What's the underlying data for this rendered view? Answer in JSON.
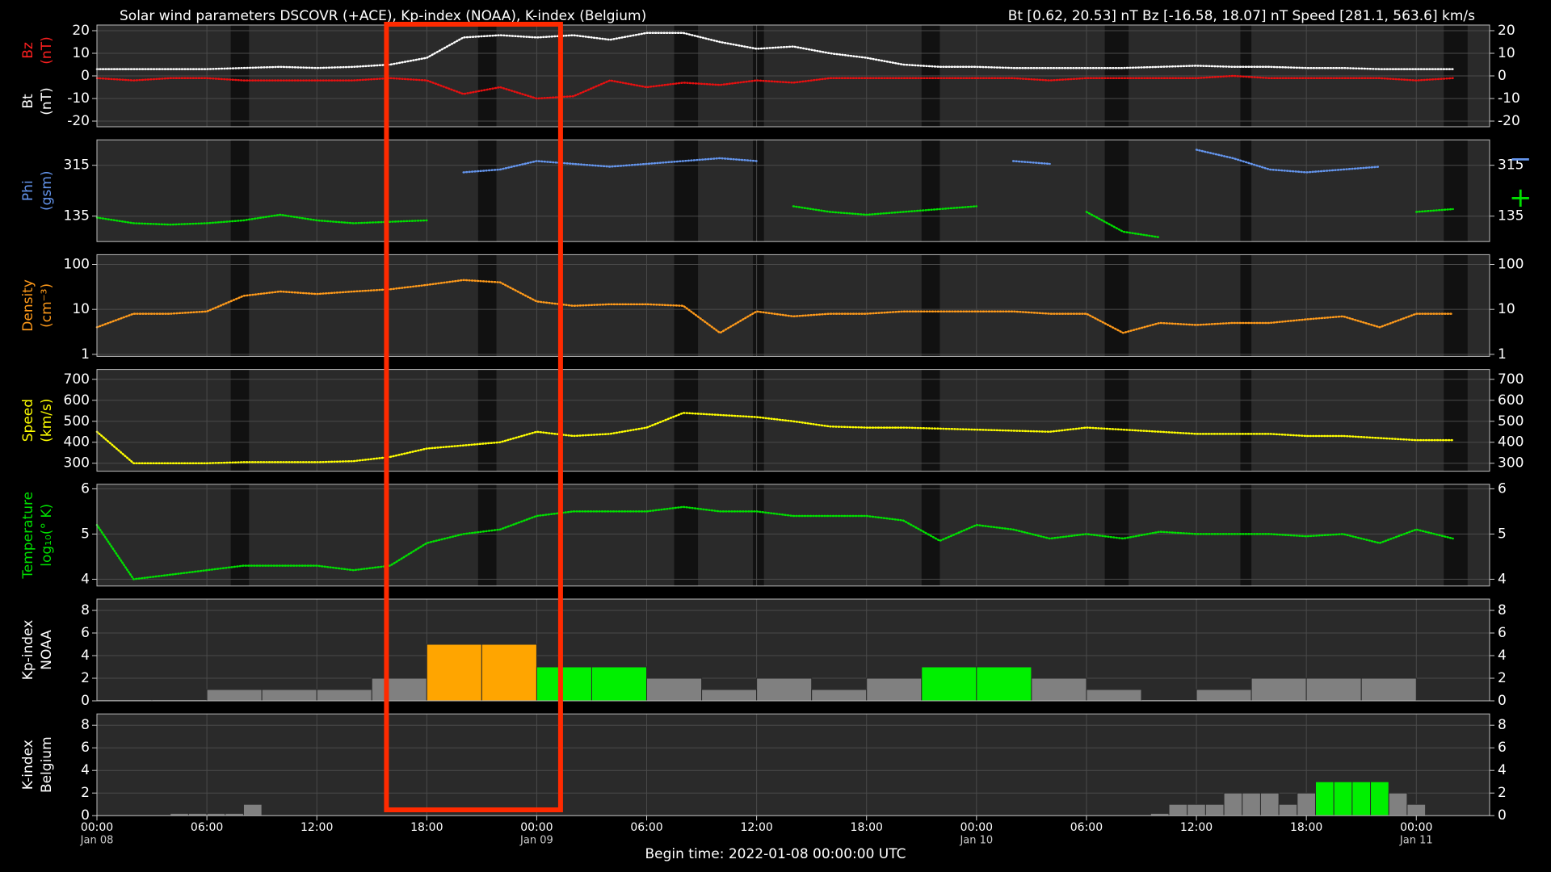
{
  "header": {
    "title": "Solar wind parameters DSCOVR (+ACE), Kp-index (NOAA), K-index (Belgium)",
    "ranges": "Bt [0.62, 20.53] nT   Bz [-16.58, 18.07] nT   Speed [281.1, 563.6] km/s"
  },
  "footer": "Begin time: 2022-01-08 00:00:00 UTC",
  "gaps": [
    [
      7.3,
      8.3
    ],
    [
      20.8,
      21.8
    ],
    [
      31.5,
      32.8
    ],
    [
      35.8,
      36.4
    ],
    [
      45.0,
      46.0
    ],
    [
      55.0,
      56.3
    ],
    [
      62.4,
      63.0
    ],
    [
      73.5,
      74.8
    ]
  ],
  "highlight": [
    15.8,
    25.3
  ],
  "chart_data": [
    {
      "type": "line",
      "ylabels": [
        {
          "lines": [
            "Bz",
            "(nT)"
          ],
          "color": "#ff2020"
        },
        {
          "lines": [
            "Bt",
            "(nT)"
          ],
          "color": "#ffffff"
        }
      ],
      "xlim": [
        0,
        76
      ],
      "ylim": [
        -22.5,
        22.5
      ],
      "yticks": [
        -20,
        -10,
        0,
        10,
        20
      ],
      "x": [
        0,
        2,
        4,
        6,
        8,
        10,
        12,
        14,
        16,
        18,
        20,
        22,
        24,
        26,
        28,
        30,
        32,
        34,
        36,
        38,
        40,
        42,
        44,
        46,
        48,
        50,
        52,
        54,
        56,
        58,
        60,
        62,
        64,
        66,
        68,
        70,
        72,
        74,
        76
      ],
      "series": [
        {
          "color": "#ffffff",
          "values": [
            3,
            3,
            3,
            3,
            3.5,
            4,
            3.5,
            4,
            5,
            8,
            17,
            18,
            17,
            18,
            16,
            19,
            19,
            15,
            12,
            13,
            10,
            8,
            5,
            4,
            4,
            3.5,
            3.5,
            3.5,
            3.5,
            4,
            4.5,
            4,
            4,
            3.5,
            3.5,
            3,
            3,
            3,
            null
          ]
        },
        {
          "color": "#e81010",
          "values": [
            -1,
            -2,
            -1,
            -1,
            -2,
            -2,
            -2,
            -2,
            -1,
            -2,
            -8,
            -5,
            -10,
            -9,
            -2,
            -5,
            -3,
            -4,
            -2,
            -3,
            -1,
            -1,
            -1,
            -1,
            -1,
            -1,
            -2,
            -1,
            -1,
            -1,
            -1,
            0,
            -1,
            -1,
            -1,
            -1,
            -2,
            -1,
            null
          ]
        }
      ]
    },
    {
      "type": "line",
      "ylabels": [
        {
          "lines": [
            "Phi",
            "(gsm)"
          ],
          "color": "#6495ed"
        }
      ],
      "xlim": [
        0,
        76
      ],
      "ylim": [
        45,
        405
      ],
      "yticks": [
        135,
        315
      ],
      "x": [
        0,
        2,
        4,
        6,
        8,
        10,
        12,
        14,
        16,
        18,
        20,
        22,
        24,
        26,
        28,
        30,
        32,
        34,
        36,
        38,
        40,
        42,
        44,
        46,
        48,
        50,
        52,
        54,
        56,
        58,
        60,
        62,
        64,
        66,
        68,
        70,
        72,
        74,
        76
      ],
      "series": [
        {
          "name": "−",
          "color": "#6495ed",
          "values": [
            null,
            null,
            null,
            null,
            null,
            null,
            null,
            null,
            null,
            null,
            290,
            300,
            330,
            320,
            310,
            320,
            330,
            340,
            330,
            null,
            null,
            null,
            null,
            null,
            null,
            330,
            320,
            null,
            null,
            null,
            370,
            340,
            300,
            290,
            300,
            310,
            null,
            null,
            null
          ]
        },
        {
          "name": "+",
          "color": "#00e000",
          "values": [
            130,
            110,
            105,
            110,
            120,
            140,
            120,
            110,
            115,
            120,
            null,
            null,
            null,
            null,
            null,
            null,
            null,
            null,
            null,
            170,
            150,
            140,
            150,
            160,
            170,
            null,
            null,
            150,
            80,
            60,
            null,
            null,
            null,
            null,
            null,
            null,
            150,
            160,
            null
          ]
        }
      ]
    },
    {
      "type": "line",
      "log": true,
      "ylabels": [
        {
          "lines": [
            "Density",
            "(cm⁻³)"
          ],
          "color": "#ff9a1a"
        }
      ],
      "xlim": [
        0,
        76
      ],
      "ylim": [
        0.9,
        165
      ],
      "yticks": [
        1,
        10,
        100
      ],
      "x": [
        0,
        2,
        4,
        6,
        8,
        10,
        12,
        14,
        16,
        18,
        20,
        22,
        24,
        26,
        28,
        30,
        32,
        34,
        36,
        38,
        40,
        42,
        44,
        46,
        48,
        50,
        52,
        54,
        56,
        58,
        60,
        62,
        64,
        66,
        68,
        70,
        72,
        74,
        76
      ],
      "series": [
        {
          "color": "#ff9a1a",
          "values": [
            4,
            8,
            8,
            9,
            20,
            25,
            22,
            25,
            28,
            35,
            45,
            40,
            15,
            12,
            13,
            13,
            12,
            3,
            9,
            7,
            8,
            8,
            9,
            9,
            9,
            9,
            8,
            8,
            3,
            5,
            4.5,
            5,
            5,
            6,
            7,
            4,
            8,
            8,
            null
          ]
        }
      ]
    },
    {
      "type": "line",
      "ylabels": [
        {
          "lines": [
            "Speed",
            "(km/s)"
          ],
          "color": "#ffff00"
        }
      ],
      "xlim": [
        0,
        76
      ],
      "ylim": [
        262,
        747
      ],
      "yticks": [
        300,
        400,
        500,
        600,
        700
      ],
      "x": [
        0,
        2,
        4,
        6,
        8,
        10,
        12,
        14,
        16,
        18,
        20,
        22,
        24,
        26,
        28,
        30,
        32,
        34,
        36,
        38,
        40,
        42,
        44,
        46,
        48,
        50,
        52,
        54,
        56,
        58,
        60,
        62,
        64,
        66,
        68,
        70,
        72,
        74,
        76
      ],
      "series": [
        {
          "color": "#ffff00",
          "values": [
            450,
            300,
            300,
            300,
            305,
            305,
            305,
            310,
            330,
            370,
            385,
            400,
            450,
            430,
            440,
            470,
            540,
            530,
            520,
            500,
            475,
            470,
            470,
            465,
            460,
            455,
            450,
            470,
            460,
            450,
            440,
            440,
            440,
            430,
            430,
            420,
            410,
            410,
            null
          ]
        }
      ]
    },
    {
      "type": "line",
      "ylabels": [
        {
          "lines": [
            "Temperature",
            "log₁₀(° K)"
          ],
          "color": "#00e000"
        }
      ],
      "xlim": [
        0,
        76
      ],
      "ylim": [
        3.85,
        6.1
      ],
      "yticks": [
        4,
        5,
        6
      ],
      "x": [
        0,
        2,
        4,
        6,
        8,
        10,
        12,
        14,
        16,
        18,
        20,
        22,
        24,
        26,
        28,
        30,
        32,
        34,
        36,
        38,
        40,
        42,
        44,
        46,
        48,
        50,
        52,
        54,
        56,
        58,
        60,
        62,
        64,
        66,
        68,
        70,
        72,
        74,
        76
      ],
      "series": [
        {
          "color": "#00e000",
          "values": [
            5.2,
            4.0,
            4.1,
            4.2,
            4.3,
            4.3,
            4.3,
            4.2,
            4.3,
            4.8,
            5.0,
            5.1,
            5.4,
            5.5,
            5.5,
            5.5,
            5.6,
            5.5,
            5.5,
            5.4,
            5.4,
            5.4,
            5.3,
            4.85,
            5.2,
            5.1,
            4.9,
            5.0,
            4.9,
            5.05,
            5.0,
            5.0,
            5.0,
            4.95,
            5.0,
            4.8,
            5.1,
            4.9,
            null
          ]
        }
      ]
    },
    {
      "type": "bar",
      "ylabels": [
        {
          "lines": [
            "Kp-index",
            "NOAA"
          ],
          "color": "#ffffff"
        }
      ],
      "xlim": [
        0,
        76
      ],
      "ylim": [
        0,
        9
      ],
      "yticks": [
        0,
        2,
        4,
        6,
        8
      ],
      "bar_width": 3,
      "x": [
        0,
        3,
        6,
        9,
        12,
        15,
        18,
        21,
        24,
        27,
        30,
        33,
        36,
        39,
        42,
        45,
        48,
        51,
        54,
        57,
        60,
        63,
        66,
        69,
        72
      ],
      "values": [
        0.1,
        0.1,
        1,
        1,
        1,
        2,
        5,
        5,
        3,
        3,
        2,
        1,
        2,
        1,
        2,
        3,
        3,
        2,
        1,
        0.1,
        1,
        2,
        2,
        2,
        0.05
      ],
      "colors": [
        "#808080",
        "#808080",
        "#808080",
        "#808080",
        "#808080",
        "#808080",
        "#ffa500",
        "#ffa500",
        "#00f000",
        "#00f000",
        "#808080",
        "#808080",
        "#808080",
        "#808080",
        "#808080",
        "#00f000",
        "#00f000",
        "#808080",
        "#808080",
        "#808080",
        "#808080",
        "#808080",
        "#808080",
        "#808080",
        "#808080"
      ]
    },
    {
      "type": "bar",
      "ylabels": [
        {
          "lines": [
            "K-index",
            "Belgium"
          ],
          "color": "#ffffff"
        }
      ],
      "xlim": [
        0,
        76
      ],
      "ylim": [
        0,
        9
      ],
      "yticks": [
        0,
        2,
        4,
        6,
        8
      ],
      "bar_width": 1,
      "x": [
        4,
        5,
        6,
        7,
        8,
        57.5,
        58.5,
        59.5,
        60.5,
        61.5,
        62.5,
        63.5,
        64.5,
        65.5,
        66.5,
        67.5,
        68.5,
        69.5,
        70.5,
        71.5
      ],
      "values": [
        0.2,
        0.2,
        0.2,
        0.2,
        1,
        0.2,
        1,
        1,
        1,
        2,
        2,
        2,
        1,
        2,
        3,
        3,
        3,
        3,
        2,
        1
      ],
      "colors": [
        "#808080",
        "#808080",
        "#808080",
        "#808080",
        "#808080",
        "#808080",
        "#808080",
        "#808080",
        "#808080",
        "#808080",
        "#808080",
        "#808080",
        "#808080",
        "#808080",
        "#00f000",
        "#00f000",
        "#00f000",
        "#00f000",
        "#808080",
        "#808080"
      ],
      "xticks": [
        {
          "value": 0,
          "label": "00:00",
          "date": "Jan 08"
        },
        {
          "value": 6,
          "label": "06:00"
        },
        {
          "value": 12,
          "label": "12:00"
        },
        {
          "value": 18,
          "label": "18:00"
        },
        {
          "value": 24,
          "label": "00:00",
          "date": "Jan 09"
        },
        {
          "value": 30,
          "label": "06:00"
        },
        {
          "value": 36,
          "label": "12:00"
        },
        {
          "value": 42,
          "label": "18:00"
        },
        {
          "value": 48,
          "label": "00:00",
          "date": "Jan 10"
        },
        {
          "value": 54,
          "label": "06:00"
        },
        {
          "value": 60,
          "label": "12:00"
        },
        {
          "value": 66,
          "label": "18:00"
        },
        {
          "value": 72,
          "label": "00:00",
          "date": "Jan 11"
        }
      ]
    }
  ]
}
